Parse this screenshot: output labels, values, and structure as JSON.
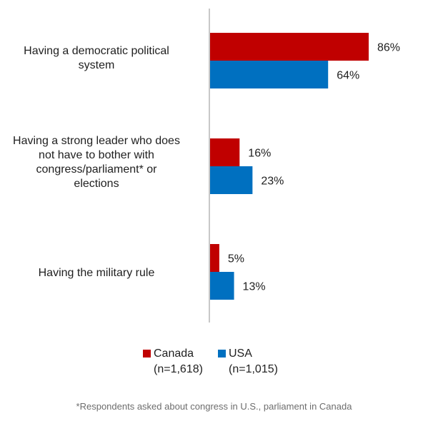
{
  "chart_data": {
    "type": "bar",
    "orientation": "horizontal",
    "categories": [
      "Having a democratic political system",
      "Having a strong leader who does not have to bother with congress/parliament* or elections",
      "Having the military rule"
    ],
    "category_lines": [
      [
        "Having a democratic political",
        "system"
      ],
      [
        "Having a strong leader who does",
        "not have to bother with",
        "congress/parliament* or",
        "elections"
      ],
      [
        "Having the military rule"
      ]
    ],
    "series": [
      {
        "name": "Canada",
        "sample": "(n=1,618)",
        "color": "#C00000",
        "values": [
          86,
          16,
          5
        ],
        "labels": [
          "86%",
          "16%",
          "5%"
        ]
      },
      {
        "name": "USA",
        "sample": "(n=1,015)",
        "color": "#0070C0",
        "values": [
          64,
          23,
          13
        ],
        "labels": [
          "64%",
          "23%",
          "13%"
        ]
      }
    ],
    "unit": "%",
    "xlim": [
      0,
      100
    ],
    "grid": false,
    "legend_position": "bottom",
    "footnote": "*Respondents asked about congress in U.S., parliament in Canada"
  }
}
